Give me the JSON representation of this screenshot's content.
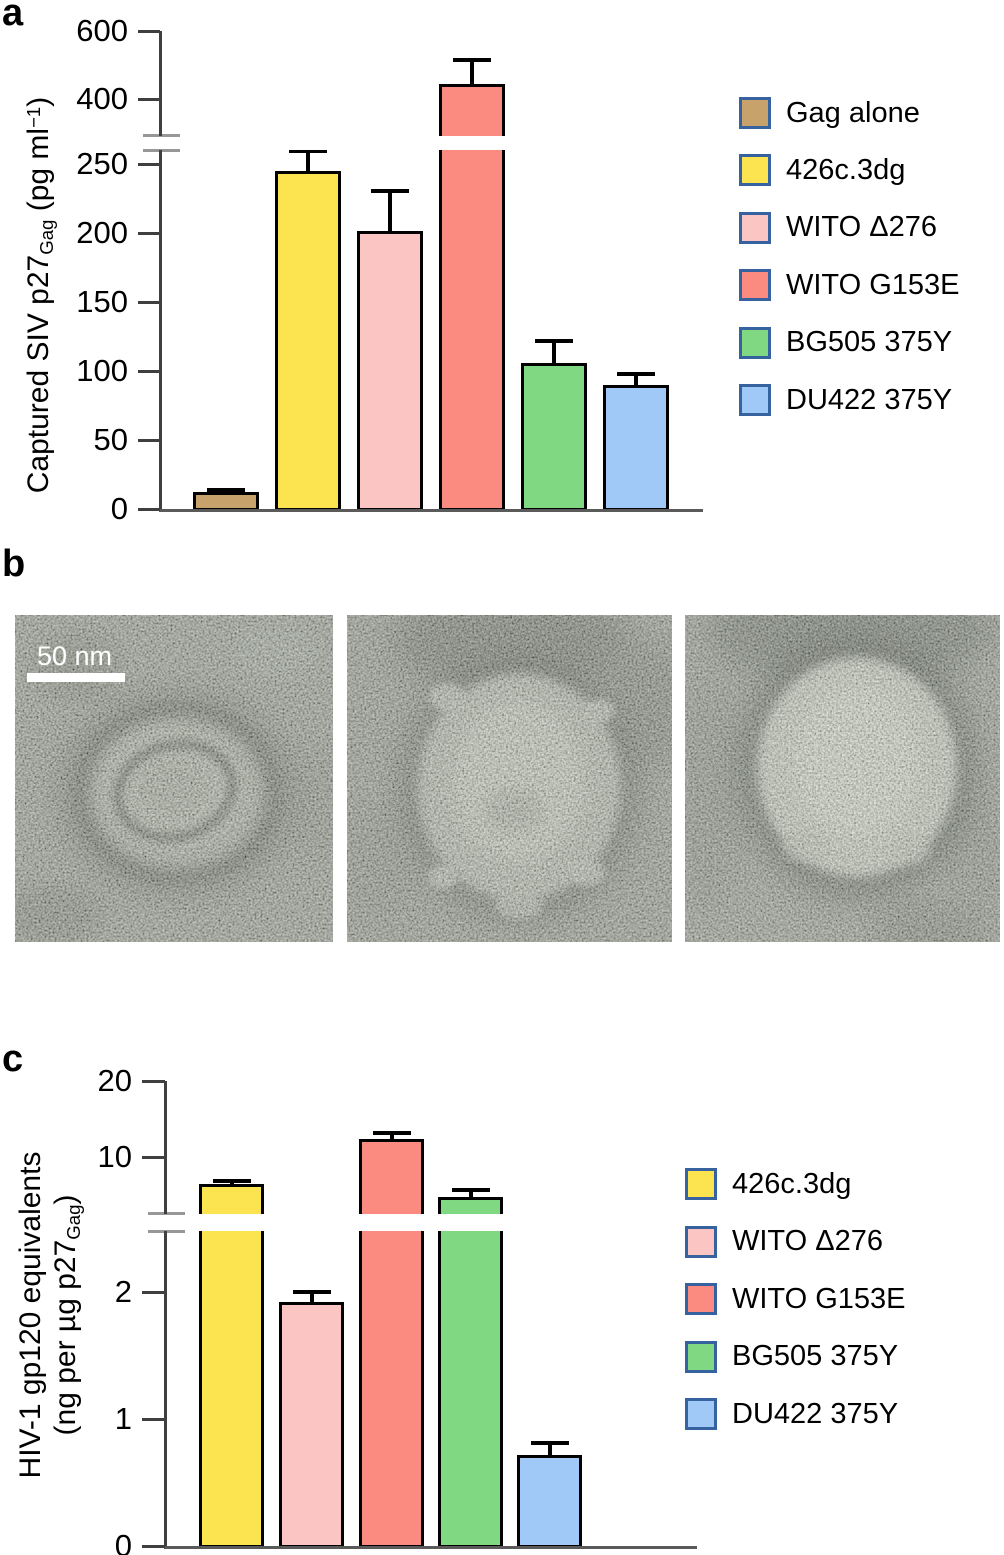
{
  "panels": {
    "a_label": "a",
    "b_label": "b",
    "c_label": "c"
  },
  "chart_data": [
    {
      "id": "a",
      "type": "bar",
      "title": "Captured SIV p27Gag (pg ml−1)",
      "ylabel": "Captured SIV p27Gag (pg ml−1)",
      "ylabel_parts": {
        "prefix": "Captured SIV p27",
        "sub": "Gag",
        "mid": " (pg ml",
        "sup": "−1",
        "suffix": ")"
      },
      "categories": [
        "Gag alone",
        "426c.3dg",
        "WITO Δ276",
        "WITO G153E",
        "BG505 375Y",
        "DU422 375Y"
      ],
      "values": [
        12,
        245,
        201,
        445,
        106,
        90
      ],
      "errors": [
        2,
        14,
        29,
        70,
        16,
        8
      ],
      "colors": [
        "#c8a26b",
        "#fbe44f",
        "#fbc5c3",
        "#fb8b81",
        "#80d882",
        "#a1c9f7"
      ],
      "lower_ticks": [
        0,
        50,
        100,
        150,
        200,
        250
      ],
      "upper_ticks": [
        400,
        600
      ],
      "axis_break": {
        "lower_ylim": [
          0,
          260
        ],
        "upper_ylim": [
          290,
          630
        ]
      },
      "grid": false,
      "legend_position": "right",
      "xlabel": ""
    },
    {
      "id": "c",
      "type": "bar",
      "title": "HIV-1 gp120 equivalents (ng per µg p27Gag)",
      "ylabel": "HIV-1 gp120 equivalents (ng per µg p27Gag)",
      "ylabel_line1": "HIV-1 gp120 equivalents",
      "ylabel_line2_parts": {
        "prefix": "(ng per µg p27",
        "sub": "Gag",
        "suffix": ")"
      },
      "categories": [
        "426c.3dg",
        "WITO Δ276",
        "WITO G153E",
        "BG505 375Y",
        "DU422 375Y"
      ],
      "values": [
        6.5,
        1.92,
        12.4,
        4.7,
        0.72
      ],
      "errors": [
        0.3,
        0.08,
        0.7,
        0.9,
        0.09
      ],
      "colors": [
        "#fbe44f",
        "#fbc5c3",
        "#fb8b81",
        "#80d882",
        "#a1c9f7"
      ],
      "lower_ticks": [
        0,
        1,
        2
      ],
      "upper_ticks": [
        10,
        20
      ],
      "axis_break": {
        "lower_ylim": [
          0,
          2.48
        ],
        "upper_ylim": [
          2.5,
          21
        ]
      },
      "grid": false,
      "legend_position": "right",
      "xlabel": ""
    }
  ],
  "panel_b": {
    "scale_bar": {
      "label": "50 nm"
    },
    "images": [
      {
        "name": "negative-stain-em-vlp-1"
      },
      {
        "name": "negative-stain-em-vlp-2"
      },
      {
        "name": "negative-stain-em-vlp-3"
      }
    ]
  }
}
